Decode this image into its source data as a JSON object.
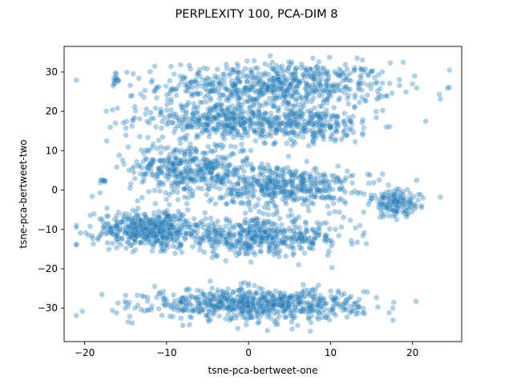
{
  "chart_data": {
    "type": "scatter",
    "title": "PERPLEXITY 100, PCA-DIM 8",
    "xlabel": "tsne-pca-bertweet-one",
    "ylabel": "tsne-pca-bertweet-two",
    "xlim": [
      -22.5,
      26.0
    ],
    "ylim": [
      -38.5,
      36.5
    ],
    "xticks": [
      -20,
      -10,
      0,
      10,
      20
    ],
    "yticks": [
      -30,
      -20,
      -10,
      0,
      10,
      20,
      30
    ],
    "grid": false,
    "point_color": "#1f77b4",
    "point_alpha": 0.35,
    "clusters": [
      {
        "cx": 3.5,
        "cy": 26.5,
        "sx": 9.5,
        "sy": 4.0,
        "n": 650
      },
      {
        "cx": -4.0,
        "cy": 18.0,
        "sx": 7.0,
        "sy": 2.8,
        "n": 300
      },
      {
        "cx": 6.0,
        "cy": 16.5,
        "sx": 6.5,
        "sy": 3.0,
        "n": 300
      },
      {
        "cx": -7.0,
        "cy": 5.5,
        "sx": 5.0,
        "sy": 4.5,
        "n": 420
      },
      {
        "cx": 4.5,
        "cy": 1.0,
        "sx": 5.5,
        "sy": 3.5,
        "n": 420
      },
      {
        "cx": -12.0,
        "cy": -10.0,
        "sx": 4.5,
        "sy": 3.0,
        "n": 500
      },
      {
        "cx": 1.5,
        "cy": -12.0,
        "sx": 7.0,
        "sy": 3.0,
        "n": 450
      },
      {
        "cx": 1.0,
        "cy": -29.0,
        "sx": 8.5,
        "sy": 2.6,
        "n": 700
      },
      {
        "cx": 18.0,
        "cy": -3.5,
        "sx": 2.0,
        "sy": 2.3,
        "n": 140
      },
      {
        "cx": -16.3,
        "cy": 28.0,
        "sx": 0.3,
        "sy": 1.0,
        "n": 14
      },
      {
        "cx": -17.7,
        "cy": 2.3,
        "sx": 0.3,
        "sy": 0.5,
        "n": 8
      }
    ],
    "outliers": [
      [
        23.4,
        -1.8
      ],
      [
        -17.3,
        12.5
      ],
      [
        20.5,
        2.5
      ],
      [
        21.3,
        -2.0
      ],
      [
        13.6,
        -9.0
      ],
      [
        14.8,
        3.8
      ]
    ]
  }
}
